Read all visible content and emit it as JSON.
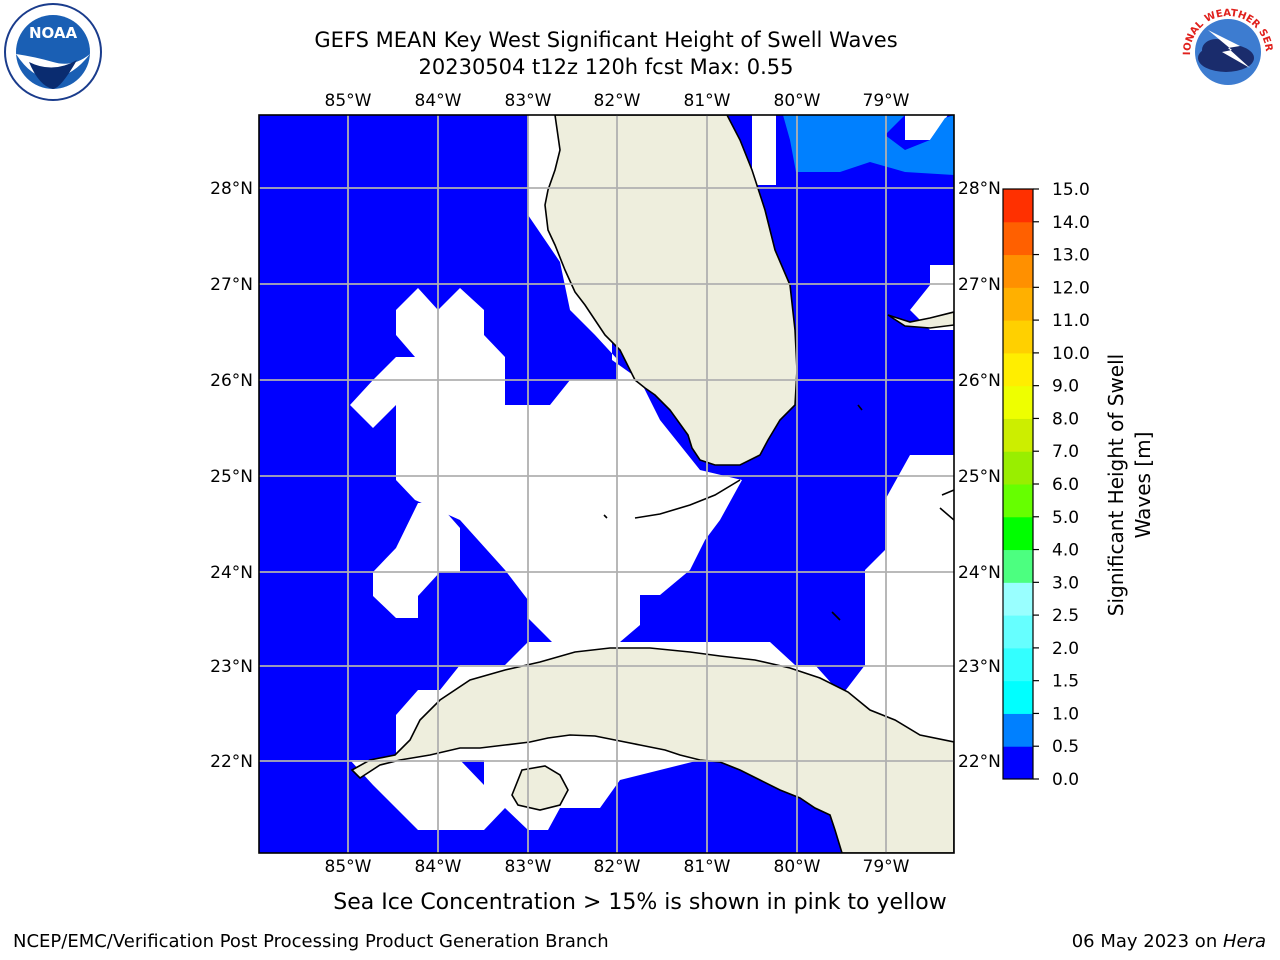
{
  "title_line1": "GEFS MEAN Key West Significant Height of Swell Waves",
  "title_line2": "20230504 t12z 120h fcst   Max: 0.55",
  "subtitle": "Sea Ice Concentration > 15% is shown in pink to yellow",
  "footer_left": "NCEP/EMC/Verification Post Processing Product Generation Branch",
  "footer_right_date": "06 May 2023 on ",
  "footer_right_host": "Hera",
  "logos": {
    "left": "NOAA",
    "right": "NATIONAL WEATHER SERVICE"
  },
  "map": {
    "lon_ticks": [
      "85°W",
      "84°W",
      "83°W",
      "82°W",
      "81°W",
      "80°W",
      "79°W"
    ],
    "lat_ticks": [
      "28°N",
      "27°N",
      "26°N",
      "25°N",
      "24°N",
      "23°N",
      "22°N"
    ],
    "colors": {
      "ocean": "#0000ff",
      "land": "#eeeedd",
      "grid": "#b0b0b0",
      "light_swell": "#0080ff"
    }
  },
  "colorbar": {
    "label": "Significant Height of Swell Waves [m]",
    "label_lines": [
      "Significant Height of Swell",
      "Waves [m]"
    ],
    "ticks": [
      "0.0",
      "0.5",
      "1.0",
      "1.5",
      "2.0",
      "2.5",
      "3.0",
      "4.0",
      "5.0",
      "6.0",
      "7.0",
      "8.0",
      "9.0",
      "10.0",
      "11.0",
      "12.0",
      "13.0",
      "14.0",
      "15.0"
    ],
    "colors": [
      "#0000ff",
      "#0080ff",
      "#00ffff",
      "#33ffff",
      "#66ffff",
      "#99ffff",
      "#4cff80",
      "#00ff00",
      "#66ff00",
      "#99ee00",
      "#ccee00",
      "#eeff00",
      "#ffee00",
      "#ffd000",
      "#ffb000",
      "#ff9000",
      "#ff6000",
      "#ff3000",
      "#ff0000"
    ]
  }
}
